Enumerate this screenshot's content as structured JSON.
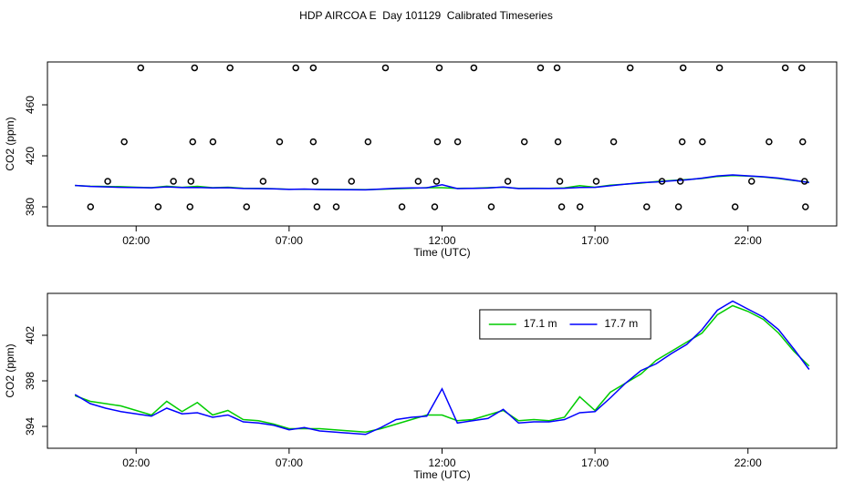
{
  "chart_data": [
    {
      "type": "line",
      "title": "HDP AIRCOA E  Day 101129  Calibrated Timeseries",
      "xlabel": "Time (UTC)",
      "ylabel": "CO2 (ppm)",
      "xlim": [
        -0.9,
        24.9
      ],
      "ylim": [
        365,
        493.6
      ],
      "xticks": [
        {
          "value": 2,
          "label": "02:00"
        },
        {
          "value": 7,
          "label": "07:00"
        },
        {
          "value": 12,
          "label": "12:00"
        },
        {
          "value": 17,
          "label": "17:00"
        },
        {
          "value": 22,
          "label": "22:00"
        }
      ],
      "yticks": [
        380,
        420,
        460
      ],
      "x": [
        0,
        0.5,
        1,
        1.5,
        2,
        2.5,
        3,
        3.5,
        4,
        4.5,
        5,
        5.5,
        6,
        6.5,
        7,
        7.5,
        8,
        8.5,
        9,
        9.5,
        10,
        10.5,
        11,
        11.5,
        12,
        12.5,
        13,
        13.5,
        14,
        14.5,
        15,
        15.5,
        16,
        16.5,
        17,
        17.5,
        18,
        18.5,
        19,
        19.5,
        20,
        20.5,
        21,
        21.5,
        22,
        22.5,
        23,
        23.5,
        24
      ],
      "series": [
        {
          "color": "#00cc00",
          "values": [
            396.7,
            396.2,
            396.0,
            395.8,
            395.4,
            395.0,
            396.2,
            395.3,
            396.1,
            395.0,
            395.4,
            394.6,
            394.5,
            394.2,
            393.8,
            393.8,
            393.8,
            393.7,
            393.6,
            393.5,
            393.8,
            394.2,
            394.6,
            395.0,
            395.0,
            394.5,
            394.6,
            395.0,
            395.4,
            394.5,
            394.6,
            394.5,
            394.8,
            396.6,
            395.4,
            397.0,
            397.8,
            398.6,
            399.8,
            400.6,
            401.4,
            402.2,
            403.8,
            404.6,
            404.1,
            403.4,
            402.2,
            400.6,
            399.3
          ]
        },
        {
          "color": "#0000ff",
          "values": [
            396.8,
            396.0,
            395.6,
            395.3,
            395.1,
            394.9,
            395.6,
            395.1,
            395.2,
            394.8,
            395.0,
            394.4,
            394.3,
            394.1,
            393.7,
            393.9,
            393.6,
            393.5,
            393.4,
            393.3,
            393.9,
            394.6,
            394.8,
            394.9,
            397.3,
            394.3,
            394.5,
            394.7,
            395.5,
            394.3,
            394.4,
            394.4,
            394.6,
            395.2,
            395.3,
            396.5,
            397.8,
            398.9,
            399.5,
            400.4,
            401.2,
            402.5,
            404.2,
            405.0,
            404.3,
            403.6,
            402.5,
            400.8,
            399.0
          ]
        }
      ],
      "points": {
        "color": "#000000",
        "x": [
          2.15,
          3.91,
          5.07,
          7.22,
          7.79,
          10.15,
          11.91,
          13.04,
          15.22,
          15.76,
          18.15,
          19.88,
          21.07,
          23.22,
          23.76,
          1.61,
          3.85,
          4.51,
          6.69,
          7.79,
          9.58,
          11.85,
          12.51,
          14.69,
          15.79,
          17.61,
          19.85,
          20.51,
          22.69,
          23.79,
          1.07,
          3.22,
          3.79,
          6.15,
          7.85,
          9.04,
          11.22,
          11.82,
          14.15,
          15.85,
          17.04,
          19.19,
          19.79,
          22.12,
          23.85,
          0.51,
          2.72,
          3.76,
          5.61,
          7.91,
          8.54,
          10.69,
          11.76,
          13.61,
          15.91,
          16.51,
          18.69,
          19.73,
          21.58,
          23.88
        ],
        "y": [
          489,
          489,
          489,
          489,
          489,
          489,
          489,
          489,
          489,
          489,
          489,
          489,
          489,
          489,
          489,
          431,
          431,
          431,
          431,
          431,
          431,
          431,
          431,
          431,
          431,
          431,
          431,
          431,
          431,
          431,
          400,
          400,
          400,
          400,
          400,
          400,
          400,
          400,
          400,
          400,
          400,
          400,
          400,
          400,
          400,
          380,
          380,
          380,
          380,
          380,
          380,
          380,
          380,
          380,
          380,
          380,
          380,
          380,
          380,
          380
        ]
      }
    },
    {
      "type": "line",
      "xlabel": "Time (UTC)",
      "ylabel": "CO2 (ppm)",
      "xlim": [
        -0.9,
        24.9
      ],
      "ylim": [
        392.08,
        405.68
      ],
      "xticks": [
        {
          "value": 2,
          "label": "02:00"
        },
        {
          "value": 7,
          "label": "07:00"
        },
        {
          "value": 12,
          "label": "12:00"
        },
        {
          "value": 17,
          "label": "17:00"
        },
        {
          "value": 22,
          "label": "22:00"
        }
      ],
      "yticks": [
        394,
        398,
        402
      ],
      "legend": "top",
      "x": [
        0,
        0.5,
        1,
        1.5,
        2,
        2.5,
        3,
        3.5,
        4,
        4.5,
        5,
        5.5,
        6,
        6.5,
        7,
        7.5,
        8,
        8.5,
        9,
        9.5,
        10,
        10.5,
        11,
        11.5,
        12,
        12.5,
        13,
        13.5,
        14,
        14.5,
        15,
        15.5,
        16,
        16.5,
        17,
        17.5,
        18,
        18.5,
        19,
        19.5,
        20,
        20.5,
        21,
        21.5,
        22,
        22.5,
        23,
        23.5,
        24
      ],
      "series": [
        {
          "name": "17.1 m",
          "color": "#00cc00",
          "values": [
            396.7,
            396.2,
            396.0,
            395.8,
            395.4,
            395.0,
            396.2,
            395.3,
            396.1,
            395.0,
            395.4,
            394.6,
            394.5,
            394.2,
            393.8,
            393.8,
            393.8,
            393.7,
            393.6,
            393.5,
            393.8,
            394.2,
            394.6,
            395.0,
            395.0,
            394.5,
            394.6,
            395.0,
            395.4,
            394.5,
            394.6,
            394.5,
            394.8,
            396.6,
            395.4,
            397.0,
            397.8,
            398.6,
            399.8,
            400.6,
            401.4,
            402.2,
            403.8,
            404.6,
            404.1,
            403.4,
            402.2,
            400.6,
            399.3
          ]
        },
        {
          "name": "17.7 m",
          "color": "#0000ff",
          "values": [
            396.8,
            396.0,
            395.6,
            395.3,
            395.1,
            394.9,
            395.6,
            395.1,
            395.2,
            394.8,
            395.0,
            394.4,
            394.3,
            394.1,
            393.7,
            393.9,
            393.6,
            393.5,
            393.4,
            393.3,
            393.9,
            394.6,
            394.8,
            394.9,
            397.3,
            394.3,
            394.5,
            394.7,
            395.5,
            394.3,
            394.4,
            394.4,
            394.6,
            395.2,
            395.3,
            396.5,
            397.8,
            398.9,
            399.5,
            400.4,
            401.2,
            402.5,
            404.2,
            405.0,
            404.3,
            403.6,
            402.5,
            400.8,
            399.0
          ]
        }
      ]
    }
  ]
}
